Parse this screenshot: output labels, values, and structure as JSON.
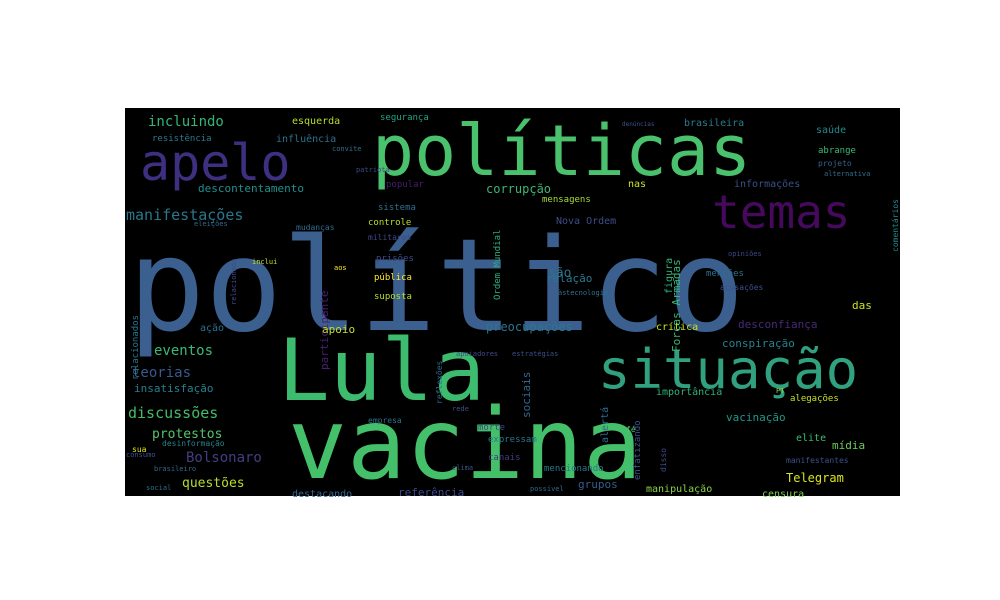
{
  "chart_data": {
    "type": "wordcloud",
    "background": "#000000",
    "colormap": "viridis",
    "words": [
      {
        "text": "político",
        "weight": 100,
        "color": "#3b5f8e",
        "rotation": 0
      },
      {
        "text": "vacina",
        "weight": 82,
        "color": "#44c06a",
        "rotation": 0
      },
      {
        "text": "Lula",
        "weight": 72,
        "color": "#3dbb6e",
        "rotation": 0
      },
      {
        "text": "políticas",
        "weight": 58,
        "color": "#4ac16d",
        "rotation": 0
      },
      {
        "text": "situação",
        "weight": 48,
        "color": "#31a07e",
        "rotation": 0
      },
      {
        "text": "apelo",
        "weight": 43,
        "color": "#3f2f80",
        "rotation": 0
      },
      {
        "text": "temas",
        "weight": 40,
        "color": "#46095d",
        "rotation": 0
      },
      {
        "text": "manifestações",
        "weight": 18,
        "color": "#2a768e",
        "rotation": 0
      },
      {
        "text": "discussões",
        "weight": 18,
        "color": "#44bc68",
        "rotation": 0
      },
      {
        "text": "eventos",
        "weight": 17,
        "color": "#3aba76",
        "rotation": 0
      },
      {
        "text": "Bolsonaro",
        "weight": 17,
        "color": "#433d84",
        "rotation": 0
      },
      {
        "text": "incluindo",
        "weight": 16,
        "color": "#34b679",
        "rotation": 0
      },
      {
        "text": "teorias",
        "weight": 16,
        "color": "#38598c",
        "rotation": 0
      },
      {
        "text": "protestos",
        "weight": 15,
        "color": "#55c568",
        "rotation": 0
      },
      {
        "text": "questões",
        "weight": 15,
        "color": "#b6dd2a",
        "rotation": 0
      },
      {
        "text": "são",
        "weight": 15,
        "color": "#2c738e",
        "rotation": 0
      },
      {
        "text": "corrupção",
        "weight": 14,
        "color": "#3eb573",
        "rotation": 0
      },
      {
        "text": "preocupações",
        "weight": 14,
        "color": "#2a778e",
        "rotation": 0
      },
      {
        "text": "Telegram",
        "weight": 14,
        "color": "#d9e51c",
        "rotation": 0
      },
      {
        "text": "insatisfação",
        "weight": 13,
        "color": "#277f8e",
        "rotation": 0
      },
      {
        "text": "descontentamento",
        "weight": 13,
        "color": "#21908c",
        "rotation": 0
      },
      {
        "text": "relação",
        "weight": 13,
        "color": "#2a788e",
        "rotation": 0
      },
      {
        "text": "vacinação",
        "weight": 13,
        "color": "#1f988b",
        "rotation": 0
      },
      {
        "text": "desconfiança",
        "weight": 13,
        "color": "#482878",
        "rotation": 0
      },
      {
        "text": "participante",
        "weight": 13,
        "color": "#482173",
        "rotation": 270
      },
      {
        "text": "referência",
        "weight": 13,
        "color": "#3e4a89",
        "rotation": 0
      },
      {
        "text": "conspiração",
        "weight": 13,
        "color": "#26828e",
        "rotation": 0
      },
      {
        "text": "Forças Armadas",
        "weight": 12,
        "color": "#37b878",
        "rotation": 270
      },
      {
        "text": "sociais",
        "weight": 12,
        "color": "#31688e",
        "rotation": 270
      },
      {
        "text": "apoio",
        "weight": 12,
        "color": "#c2df23",
        "rotation": 0
      },
      {
        "text": "grupos",
        "weight": 12,
        "color": "#365c8d",
        "rotation": 0
      },
      {
        "text": "das",
        "weight": 12,
        "color": "#d0e11c",
        "rotation": 0
      },
      {
        "text": "mídia",
        "weight": 12,
        "color": "#6ccd5a",
        "rotation": 0
      },
      {
        "text": "esquerda",
        "weight": 11,
        "color": "#b8de29",
        "rotation": 0
      },
      {
        "text": "figura",
        "weight": 11,
        "color": "#2eb37c",
        "rotation": 270
      },
      {
        "text": "saúde",
        "weight": 11,
        "color": "#238a8d",
        "rotation": 0
      },
      {
        "text": "influência",
        "weight": 11,
        "color": "#2c718e",
        "rotation": 0
      },
      {
        "text": "crítica",
        "weight": 11,
        "color": "#c8e020",
        "rotation": 0
      },
      {
        "text": "destacando",
        "weight": 11,
        "color": "#30698e",
        "rotation": 0
      },
      {
        "text": "informações",
        "weight": 11,
        "color": "#3b518b",
        "rotation": 0
      },
      {
        "text": "manipulação",
        "weight": 11,
        "color": "#8bd646",
        "rotation": 0
      },
      {
        "text": "censura",
        "weight": 11,
        "color": "#7ad151",
        "rotation": 0
      },
      {
        "text": "ação",
        "weight": 11,
        "color": "#2c728e",
        "rotation": 0
      },
      {
        "text": "brasileira",
        "weight": 11,
        "color": "#287d8e",
        "rotation": 0
      },
      {
        "text": "elite",
        "weight": 11,
        "color": "#3bbb75",
        "rotation": 0
      },
      {
        "text": "Nova Ordem",
        "weight": 11,
        "color": "#3d4d8a",
        "rotation": 0
      },
      {
        "text": "importância",
        "weight": 11,
        "color": "#2db27d",
        "rotation": 0
      },
      {
        "text": "nas",
        "weight": 11,
        "color": "#cde11d",
        "rotation": 0
      },
      {
        "text": "alertá",
        "weight": 11,
        "color": "#2e6d8e",
        "rotation": 270
      },
      {
        "text": "Ordem Mundial",
        "weight": 10,
        "color": "#2ab07f",
        "rotation": 270
      },
      {
        "text": "pública",
        "weight": 10,
        "color": "#fde725",
        "rotation": 0
      },
      {
        "text": "prisões",
        "weight": 10,
        "color": "#3e4989",
        "rotation": 0
      },
      {
        "text": "suposta",
        "weight": 10,
        "color": "#b5de2b",
        "rotation": 0
      },
      {
        "text": "alegações",
        "weight": 10,
        "color": "#c5e021",
        "rotation": 0
      },
      {
        "text": "relacionados",
        "weight": 10,
        "color": "#2a788e",
        "rotation": 270
      },
      {
        "text": "controle",
        "weight": 10,
        "color": "#bddf26",
        "rotation": 0
      },
      {
        "text": "sistema",
        "weight": 10,
        "color": "#2d708e",
        "rotation": 0
      },
      {
        "text": "expressam",
        "weight": 10,
        "color": "#2a768e",
        "rotation": 0
      },
      {
        "text": "mencionando",
        "weight": 10,
        "color": "#29798e",
        "rotation": 0
      },
      {
        "text": "mensagens",
        "weight": 10,
        "color": "#a8db34",
        "rotation": 0
      },
      {
        "text": "segurança",
        "weight": 10,
        "color": "#20a386",
        "rotation": 0
      },
      {
        "text": "resistência",
        "weight": 10,
        "color": "#2a788e",
        "rotation": 0
      },
      {
        "text": "enfatizando",
        "weight": 10,
        "color": "#3b528b",
        "rotation": 270
      },
      {
        "text": "menções",
        "weight": 10,
        "color": "#2c718e",
        "rotation": 0
      },
      {
        "text": "abrange",
        "weight": 10,
        "color": "#3aba76",
        "rotation": 0
      },
      {
        "text": "popular",
        "weight": 10,
        "color": "#481f70",
        "rotation": 0
      },
      {
        "text": "canais",
        "weight": 10,
        "color": "#443a83",
        "rotation": 0
      },
      {
        "text": "morte",
        "weight": 10,
        "color": "#3f4788",
        "rotation": 0
      },
      {
        "text": "manifestantes",
        "weight": 9,
        "color": "#3b528b",
        "rotation": 0
      },
      {
        "text": "comentários",
        "weight": 9,
        "color": "#23888e",
        "rotation": 270
      },
      {
        "text": "projeto",
        "weight": 9,
        "color": "#34618d",
        "rotation": 0
      },
      {
        "text": "sua",
        "weight": 9,
        "color": "#e2e418",
        "rotation": 0
      },
      {
        "text": "empresa",
        "weight": 9,
        "color": "#2d6f8e",
        "rotation": 0
      },
      {
        "text": "reflexões",
        "weight": 9,
        "color": "#2e6e8e",
        "rotation": 270
      },
      {
        "text": "disso",
        "weight": 9,
        "color": "#3e4c8a",
        "rotation": 270
      },
      {
        "text": "mudanças",
        "weight": 8,
        "color": "#2e6d8e",
        "rotation": 0
      },
      {
        "text": "militares",
        "weight": 8,
        "color": "#3e4a89",
        "rotation": 0
      },
      {
        "text": "acusações",
        "weight": 8,
        "color": "#3b528b",
        "rotation": 0
      },
      {
        "text": "desinformação",
        "weight": 8,
        "color": "#26828e",
        "rotation": 0
      },
      {
        "text": "fé",
        "weight": 8,
        "color": "#50c46a",
        "rotation": 0
      },
      {
        "text": "alternativa",
        "weight": 7,
        "color": "#2e6d8e",
        "rotation": 0
      },
      {
        "text": "estratégias",
        "weight": 7,
        "color": "#3b518b",
        "rotation": 0
      },
      {
        "text": "apoiadores",
        "weight": 7,
        "color": "#3e4989",
        "rotation": 0
      },
      {
        "text": "opiniões",
        "weight": 7,
        "color": "#3f4788",
        "rotation": 0
      },
      {
        "text": "patriota",
        "weight": 7,
        "color": "#3f4889",
        "rotation": 0
      },
      {
        "text": "convite",
        "weight": 7,
        "color": "#2c728e",
        "rotation": 0
      },
      {
        "text": "eleições",
        "weight": 7,
        "color": "#31688e",
        "rotation": 0
      },
      {
        "text": "inclui",
        "weight": 7,
        "color": "#c7e020",
        "rotation": 0
      },
      {
        "text": "aos",
        "weight": 7,
        "color": "#fde725",
        "rotation": 0
      },
      {
        "text": "às",
        "weight": 7,
        "color": "#31688e",
        "rotation": 0
      },
      {
        "text": "tecnologia",
        "weight": 7,
        "color": "#2c738e",
        "rotation": 0
      },
      {
        "text": "relacionada",
        "weight": 7,
        "color": "#3e4a89",
        "rotation": 270
      },
      {
        "text": "rede",
        "weight": 7,
        "color": "#3e4c8a",
        "rotation": 0
      },
      {
        "text": "consumo",
        "weight": 7,
        "color": "#3b528b",
        "rotation": 0
      },
      {
        "text": "brasileiro",
        "weight": 7,
        "color": "#30698e",
        "rotation": 0
      },
      {
        "text": "social",
        "weight": 7,
        "color": "#2e6e8e",
        "rotation": 0
      },
      {
        "text": "clima",
        "weight": 7,
        "color": "#3a538b",
        "rotation": 0
      },
      {
        "text": "possível",
        "weight": 7,
        "color": "#30698e",
        "rotation": 0
      },
      {
        "text": "PT",
        "weight": 7,
        "color": "#90d743",
        "rotation": 0
      },
      {
        "text": "denúncias",
        "weight": 6,
        "color": "#3b528b",
        "rotation": 0
      }
    ]
  }
}
